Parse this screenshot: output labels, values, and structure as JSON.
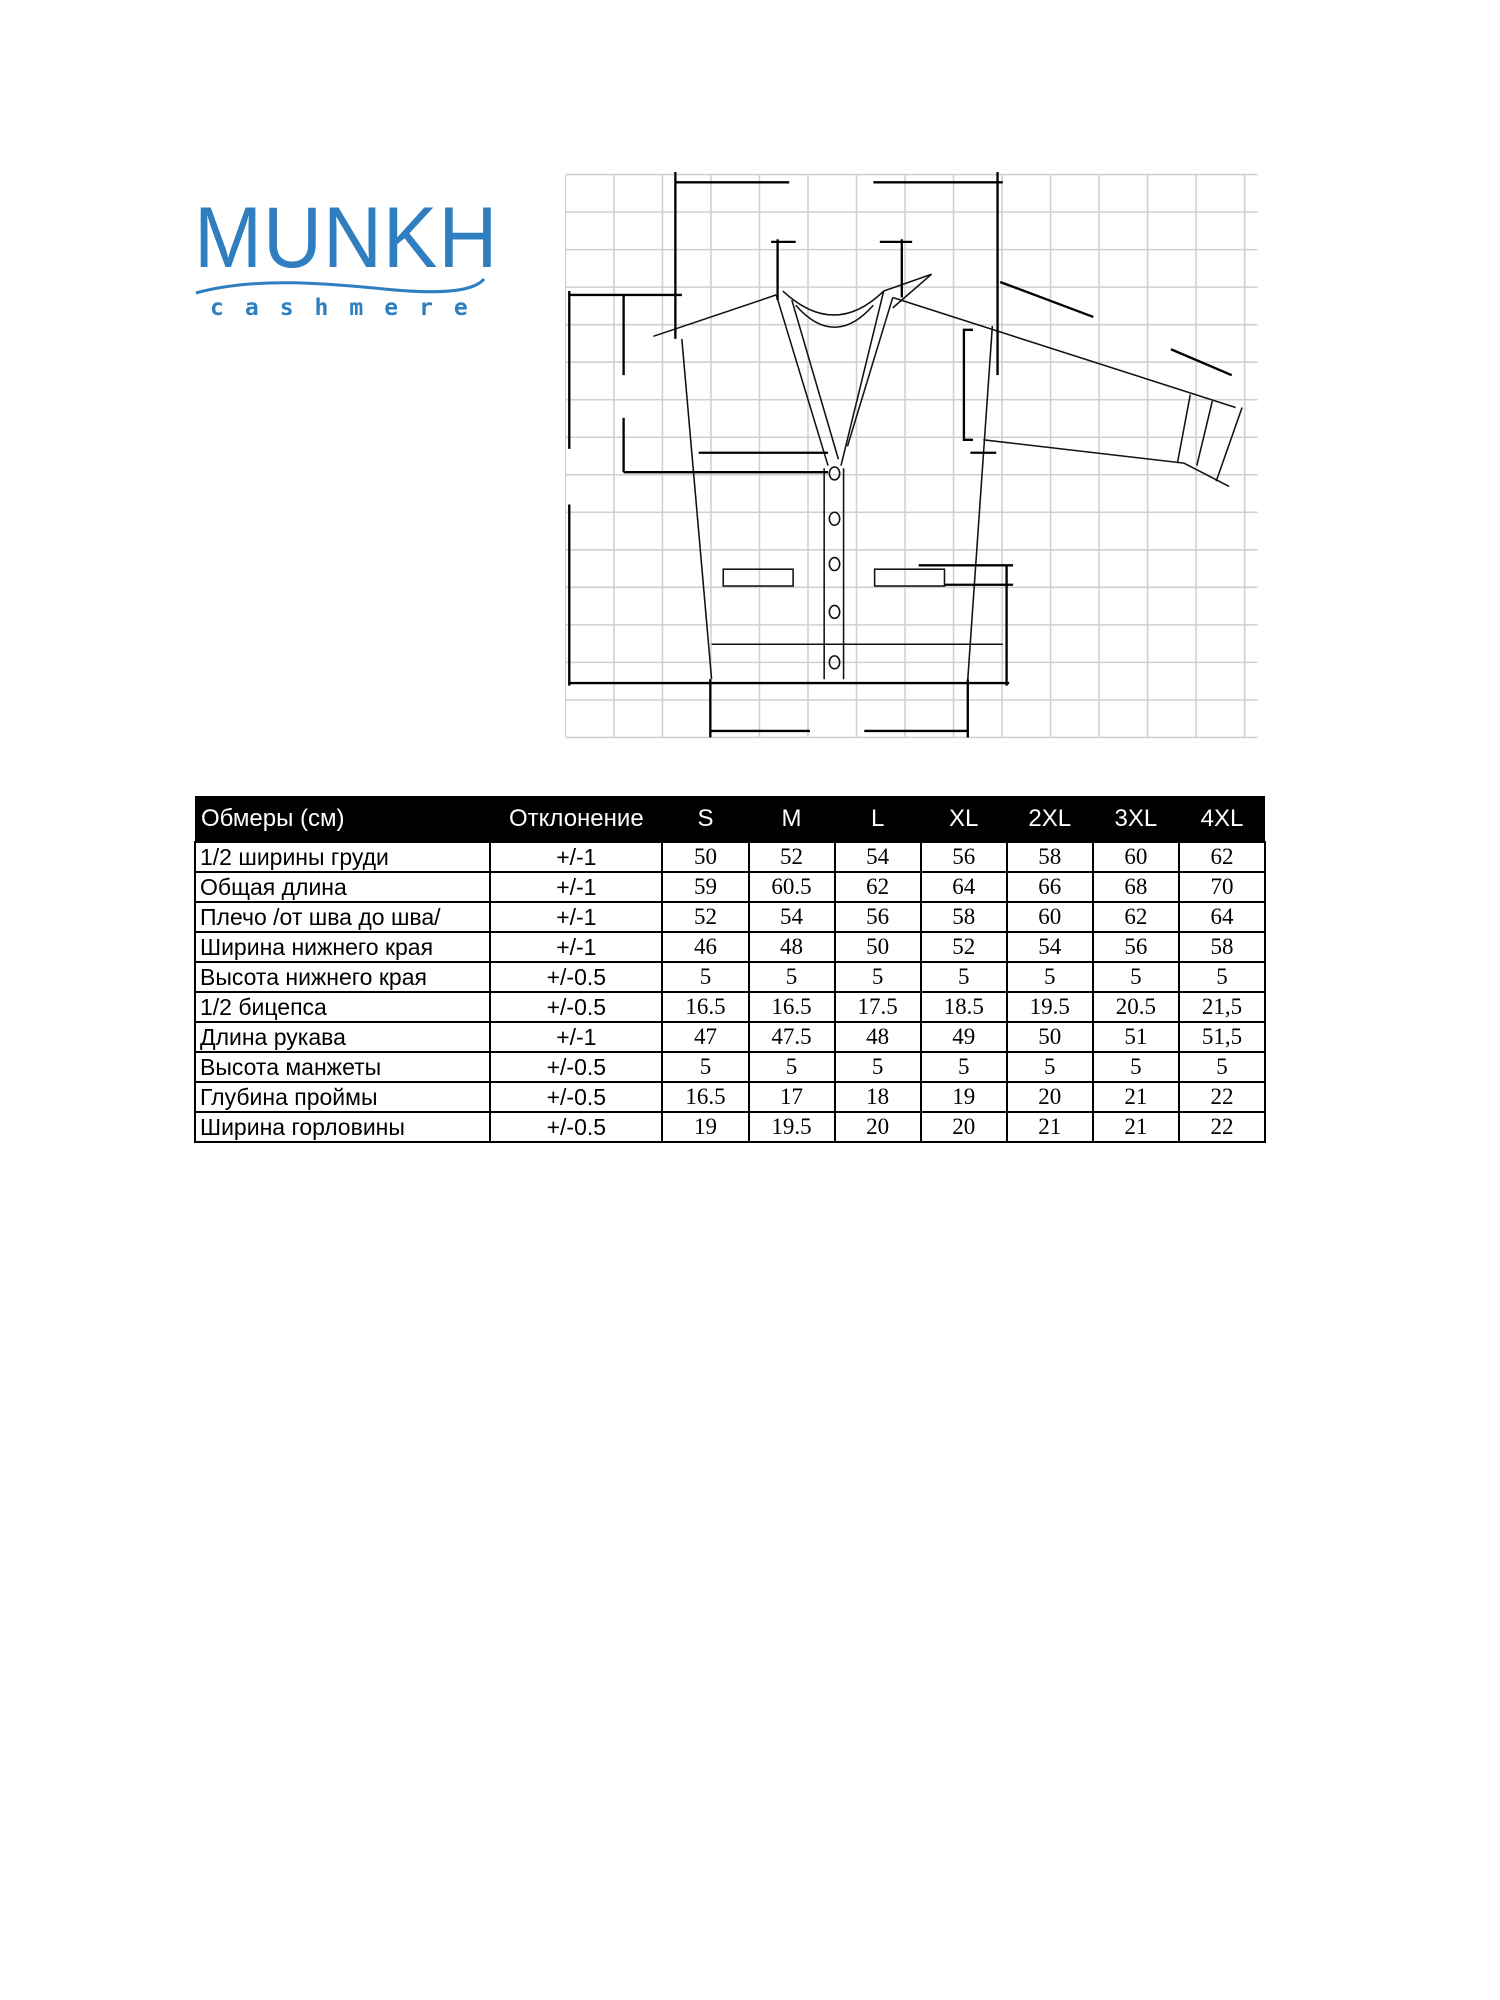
{
  "brand": {
    "name": "MUNKH",
    "subtitle": "cashmere",
    "color": "#2f7fc0"
  },
  "table": {
    "headers": [
      "Обмеры (см)",
      "Отклонение",
      "S",
      "M",
      "L",
      "XL",
      "2XL",
      "3XL",
      "4XL"
    ],
    "rows": [
      {
        "name": "1/2 ширины груди",
        "tolerance": "+/-1",
        "values": [
          "50",
          "52",
          "54",
          "56",
          "58",
          "60",
          "62"
        ]
      },
      {
        "name": "Общая длина",
        "tolerance": "+/-1",
        "values": [
          "59",
          "60.5",
          "62",
          "64",
          "66",
          "68",
          "70"
        ]
      },
      {
        "name": "Плечо /от шва до шва/",
        "tolerance": "+/-1",
        "values": [
          "52",
          "54",
          "56",
          "58",
          "60",
          "62",
          "64"
        ]
      },
      {
        "name": "Ширина нижнего края",
        "tolerance": "+/-1",
        "values": [
          "46",
          "48",
          "50",
          "52",
          "54",
          "56",
          "58"
        ]
      },
      {
        "name": "Высота нижнего края",
        "tolerance": "+/-0.5",
        "values": [
          "5",
          "5",
          "5",
          "5",
          "5",
          "5",
          "5"
        ]
      },
      {
        "name": "1/2 бицепса",
        "tolerance": "+/-0.5",
        "values": [
          "16.5",
          "16.5",
          "17.5",
          "18.5",
          "19.5",
          "20.5",
          "21,5"
        ]
      },
      {
        "name": "Длина рукава",
        "tolerance": "+/-1",
        "values": [
          "47",
          "47.5",
          "48",
          "49",
          "50",
          "51",
          "51,5"
        ]
      },
      {
        "name": "Высота манжеты",
        "tolerance": "+/-0.5",
        "values": [
          "5",
          "5",
          "5",
          "5",
          "5",
          "5",
          "5"
        ]
      },
      {
        "name": "Глубина проймы",
        "tolerance": "+/-0.5",
        "values": [
          "16.5",
          "17",
          "18",
          "19",
          "20",
          "21",
          "22"
        ]
      },
      {
        "name": "Ширина горловины",
        "tolerance": "+/-0.5",
        "values": [
          "19",
          "19.5",
          "20",
          "20",
          "21",
          "21",
          "22"
        ]
      }
    ]
  }
}
